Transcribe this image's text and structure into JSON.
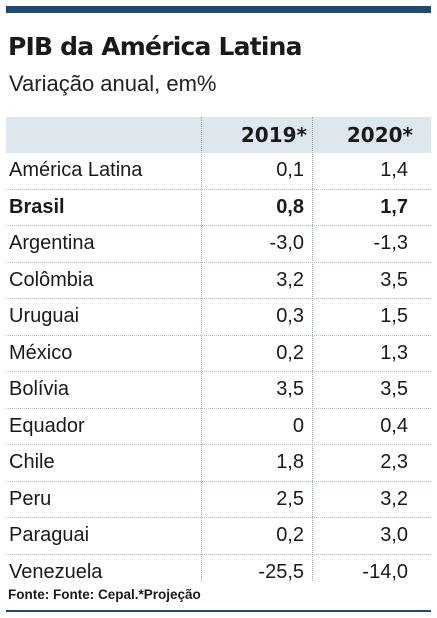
{
  "title": "PIB da América Latina",
  "subtitle": "Variação anual, em%",
  "columns": [
    "2019*",
    "2020*"
  ],
  "rows": [
    {
      "country": "América Latina",
      "v2019": "0,1",
      "v2020": "1,4"
    },
    {
      "country": "Brasil",
      "v2019": "0,8",
      "v2020": "1,7",
      "highlight": true
    },
    {
      "country": "Argentina",
      "v2019": "-3,0",
      "v2020": "-1,3"
    },
    {
      "country": "Colômbia",
      "v2019": "3,2",
      "v2020": "3,5"
    },
    {
      "country": "Uruguai",
      "v2019": "0,3",
      "v2020": "1,5"
    },
    {
      "country": "México",
      "v2019": "0,2",
      "v2020": "1,3"
    },
    {
      "country": "Bolívia",
      "v2019": "3,5",
      "v2020": "3,5"
    },
    {
      "country": "Equador",
      "v2019": "0",
      "v2020": "0,4"
    },
    {
      "country": "Chile",
      "v2019": "1,8",
      "v2020": "2,3"
    },
    {
      "country": "Peru",
      "v2019": "2,5",
      "v2020": "3,2"
    },
    {
      "country": "Paraguai",
      "v2019": "0,2",
      "v2020": "3,0"
    },
    {
      "country": "Venezuela",
      "v2019": "-25,5",
      "v2020": "-14,0"
    }
  ],
  "source": "Fonte: Fonte: Cepal.*Projeção",
  "colors": {
    "accent_bar": "#1f4a70",
    "header_bg": "#dee6ee"
  }
}
